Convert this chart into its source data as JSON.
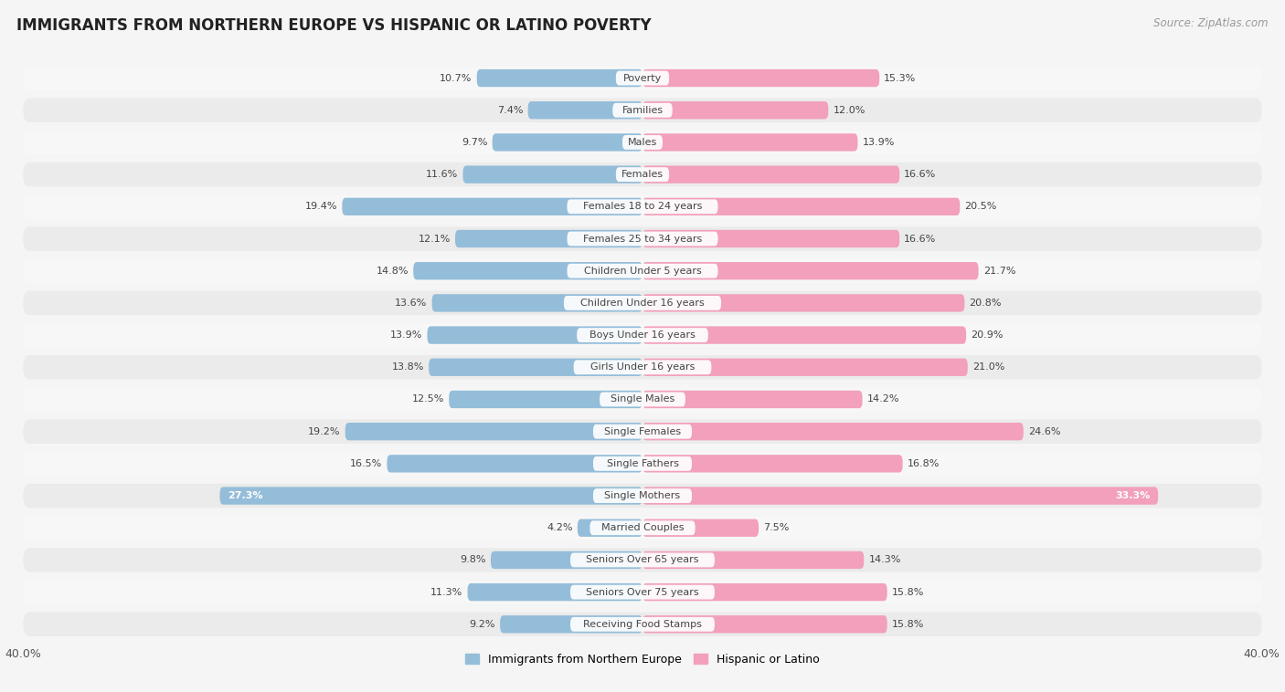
{
  "title": "IMMIGRANTS FROM NORTHERN EUROPE VS HISPANIC OR LATINO POVERTY",
  "source": "Source: ZipAtlas.com",
  "categories": [
    "Poverty",
    "Families",
    "Males",
    "Females",
    "Females 18 to 24 years",
    "Females 25 to 34 years",
    "Children Under 5 years",
    "Children Under 16 years",
    "Boys Under 16 years",
    "Girls Under 16 years",
    "Single Males",
    "Single Females",
    "Single Fathers",
    "Single Mothers",
    "Married Couples",
    "Seniors Over 65 years",
    "Seniors Over 75 years",
    "Receiving Food Stamps"
  ],
  "blue_values": [
    10.7,
    7.4,
    9.7,
    11.6,
    19.4,
    12.1,
    14.8,
    13.6,
    13.9,
    13.8,
    12.5,
    19.2,
    16.5,
    27.3,
    4.2,
    9.8,
    11.3,
    9.2
  ],
  "pink_values": [
    15.3,
    12.0,
    13.9,
    16.6,
    20.5,
    16.6,
    21.7,
    20.8,
    20.9,
    21.0,
    14.2,
    24.6,
    16.8,
    33.3,
    7.5,
    14.3,
    15.8,
    15.8
  ],
  "blue_color": "#94bdd9",
  "pink_color": "#f2a0bb",
  "blue_label": "Immigrants from Northern Europe",
  "pink_label": "Hispanic or Latino",
  "xlim": 40.0,
  "row_bg_even": "#f7f7f7",
  "row_bg_odd": "#ebebeb",
  "fig_bg": "#f5f5f5",
  "title_fontsize": 12,
  "source_fontsize": 8.5,
  "cat_fontsize": 8,
  "val_fontsize": 8,
  "val_inside_color": "#ffffff",
  "val_outside_color": "#444444"
}
